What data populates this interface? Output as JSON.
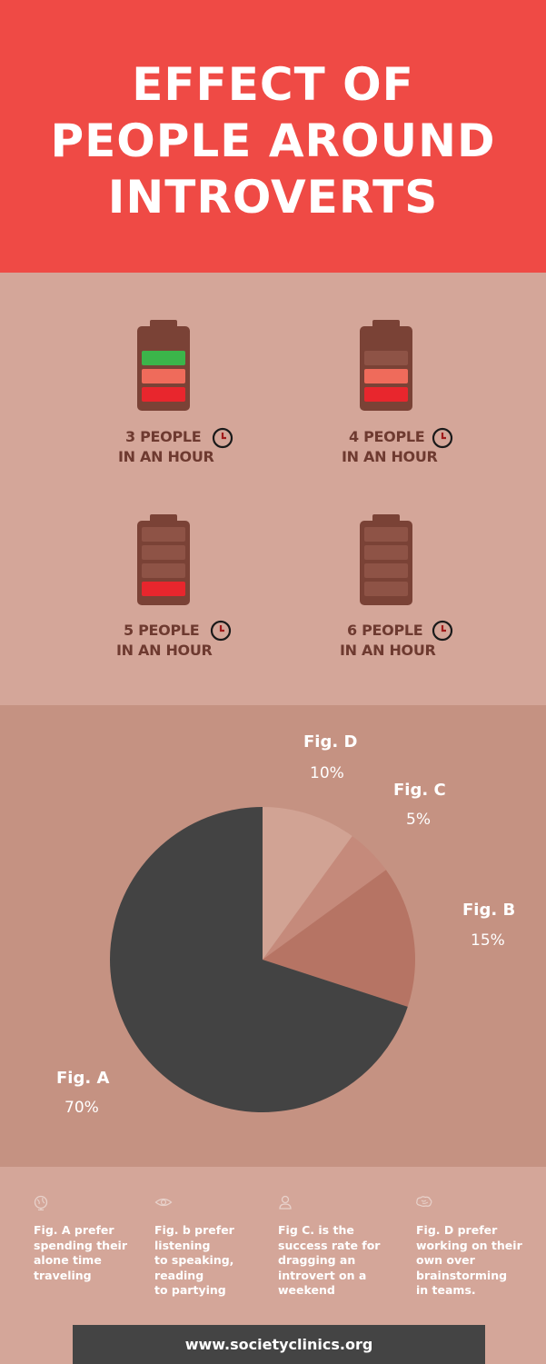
{
  "title": {
    "line1": "EFFECT OF",
    "line2": "PEOPLE AROUND",
    "line3": "INTROVERTS"
  },
  "batteries": [
    {
      "line1": "3 PEOPLE",
      "line2": "IN AN HOUR",
      "cells": [
        "#3bb54a",
        "#ef6b5b",
        "#e8262d",
        "#7a4236"
      ]
    },
    {
      "line1": "4 PEOPLE",
      "line2": "IN AN HOUR",
      "cells": [
        "#8e5346",
        "#ef6b5b",
        "#e8262d",
        "#7a4236"
      ]
    },
    {
      "line1": "5 PEOPLE",
      "line2": "IN AN HOUR",
      "cells": [
        "#8e5346",
        "#8e5346",
        "#e8262d"
      ]
    },
    {
      "line1": "6 PEOPLE",
      "line2": "IN AN HOUR",
      "cells": [
        "#8e5346",
        "#8e5346",
        "#8e5346",
        "#8e5346"
      ]
    }
  ],
  "chart_data": {
    "type": "pie",
    "slices": [
      {
        "name": "Fig. A",
        "label": "70%",
        "value": 70,
        "color": "#434343"
      },
      {
        "name": "Fig. B",
        "label": "15%",
        "value": 15,
        "color": "#b67464"
      },
      {
        "name": "Fig. C",
        "label": "5%",
        "value": 5,
        "color": "#c58a7b"
      },
      {
        "name": "Fig. D",
        "label": "10%",
        "value": 10,
        "color": "#d1a394"
      }
    ]
  },
  "notes": [
    {
      "icon": "globe-icon",
      "lines": [
        "Fig. A prefer",
        "spending their",
        "alone time",
        "traveling"
      ]
    },
    {
      "icon": "eye-icon",
      "lines": [
        "Fig.  b prefer",
        "listening",
        "to speaking,",
        "reading",
        "to partying"
      ]
    },
    {
      "icon": "person-icon",
      "lines": [
        "Fig C. is the",
        "success rate for",
        "dragging an",
        "introvert on a",
        "weekend"
      ]
    },
    {
      "icon": "brain-icon",
      "lines": [
        "Fig. D prefer",
        "working on their",
        "own over",
        "brainstorming",
        "in teams."
      ]
    }
  ],
  "footer": {
    "url": "www.societyclinics.org"
  },
  "colors": {
    "header": "#ef4a45",
    "battery_bg": "#d4a699",
    "pie_bg": "#c59282",
    "footer": "#444444",
    "label": "#6e3a30"
  }
}
